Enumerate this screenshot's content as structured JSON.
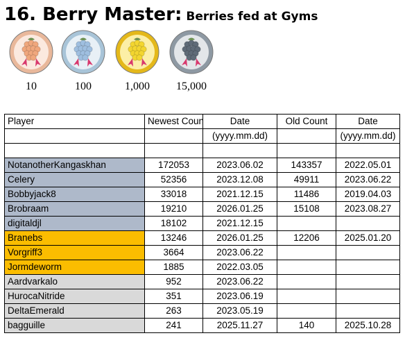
{
  "header": {
    "title": "16. Berry Master:",
    "subtitle": "Berries fed at Gyms"
  },
  "medals": [
    {
      "label": "10",
      "tier": "bronze",
      "ring": "#e9b89b",
      "inner": "#fbe9df",
      "berry": "#f0a77d"
    },
    {
      "label": "100",
      "tier": "silver",
      "ring": "#a8c4d8",
      "inner": "#e8f0f6",
      "berry": "#9fbfe0"
    },
    {
      "label": "1,000",
      "tier": "gold",
      "ring": "#e4b81a",
      "inner": "#fcefa6",
      "berry": "#f3d630"
    },
    {
      "label": "15,000",
      "tier": "platinum",
      "ring": "#8e99a3",
      "inner": "#e3e6e9",
      "berry": "#5f6b78"
    }
  ],
  "table": {
    "headers": [
      "Player",
      "Newest Count",
      "Date",
      "Old Count",
      "Date"
    ],
    "subheaders": [
      "",
      "",
      "(yyyy.mm.dd)",
      "",
      "(yyyy.mm.dd)"
    ],
    "colors": {
      "blue": "#aeb9ca",
      "gold": "#fbbd00",
      "gray": "#d9d9d9"
    },
    "rows": [
      {
        "player": "NotanotherKangaskhan",
        "newest": "172053",
        "date": "2023.06.02",
        "old": "143357",
        "old_date": "2022.05.01",
        "color": "blue"
      },
      {
        "player": "Celery",
        "newest": "52356",
        "date": "2023.12.08",
        "old": "49911",
        "old_date": "2023.06.22",
        "color": "blue"
      },
      {
        "player": "Bobbyjack8",
        "newest": "33018",
        "date": "2021.12.15",
        "old": "11486",
        "old_date": "2019.04.03",
        "color": "blue"
      },
      {
        "player": "Brobraam",
        "newest": "19210",
        "date": "2026.01.25",
        "old": "15108",
        "old_date": "2023.08.27",
        "color": "blue"
      },
      {
        "player": "digitaldjl",
        "newest": "18102",
        "date": "2021.12.15",
        "old": "",
        "old_date": "",
        "color": "blue"
      },
      {
        "player": "Branebs",
        "newest": "13246",
        "date": "2026.01.25",
        "old": "12206",
        "old_date": "2025.01.20",
        "color": "gold"
      },
      {
        "player": "Vorgriff3",
        "newest": "3664",
        "date": "2023.06.22",
        "old": "",
        "old_date": "",
        "color": "gold"
      },
      {
        "player": "Jormdeworm",
        "newest": "1885",
        "date": "2022.03.05",
        "old": "",
        "old_date": "",
        "color": "gold"
      },
      {
        "player": "Aardvarkalo",
        "newest": "952",
        "date": "2023.06.22",
        "old": "",
        "old_date": "",
        "color": "gray"
      },
      {
        "player": "HurocaNitride",
        "newest": "351",
        "date": "2023.06.19",
        "old": "",
        "old_date": "",
        "color": "gray"
      },
      {
        "player": "DeltaEmerald",
        "newest": "263",
        "date": "2023.05.19",
        "old": "",
        "old_date": "",
        "color": "gray"
      },
      {
        "player": "bagguille",
        "newest": "241",
        "date": "2025.11.27",
        "old": "140",
        "old_date": "2025.10.28",
        "color": "gray"
      }
    ]
  }
}
